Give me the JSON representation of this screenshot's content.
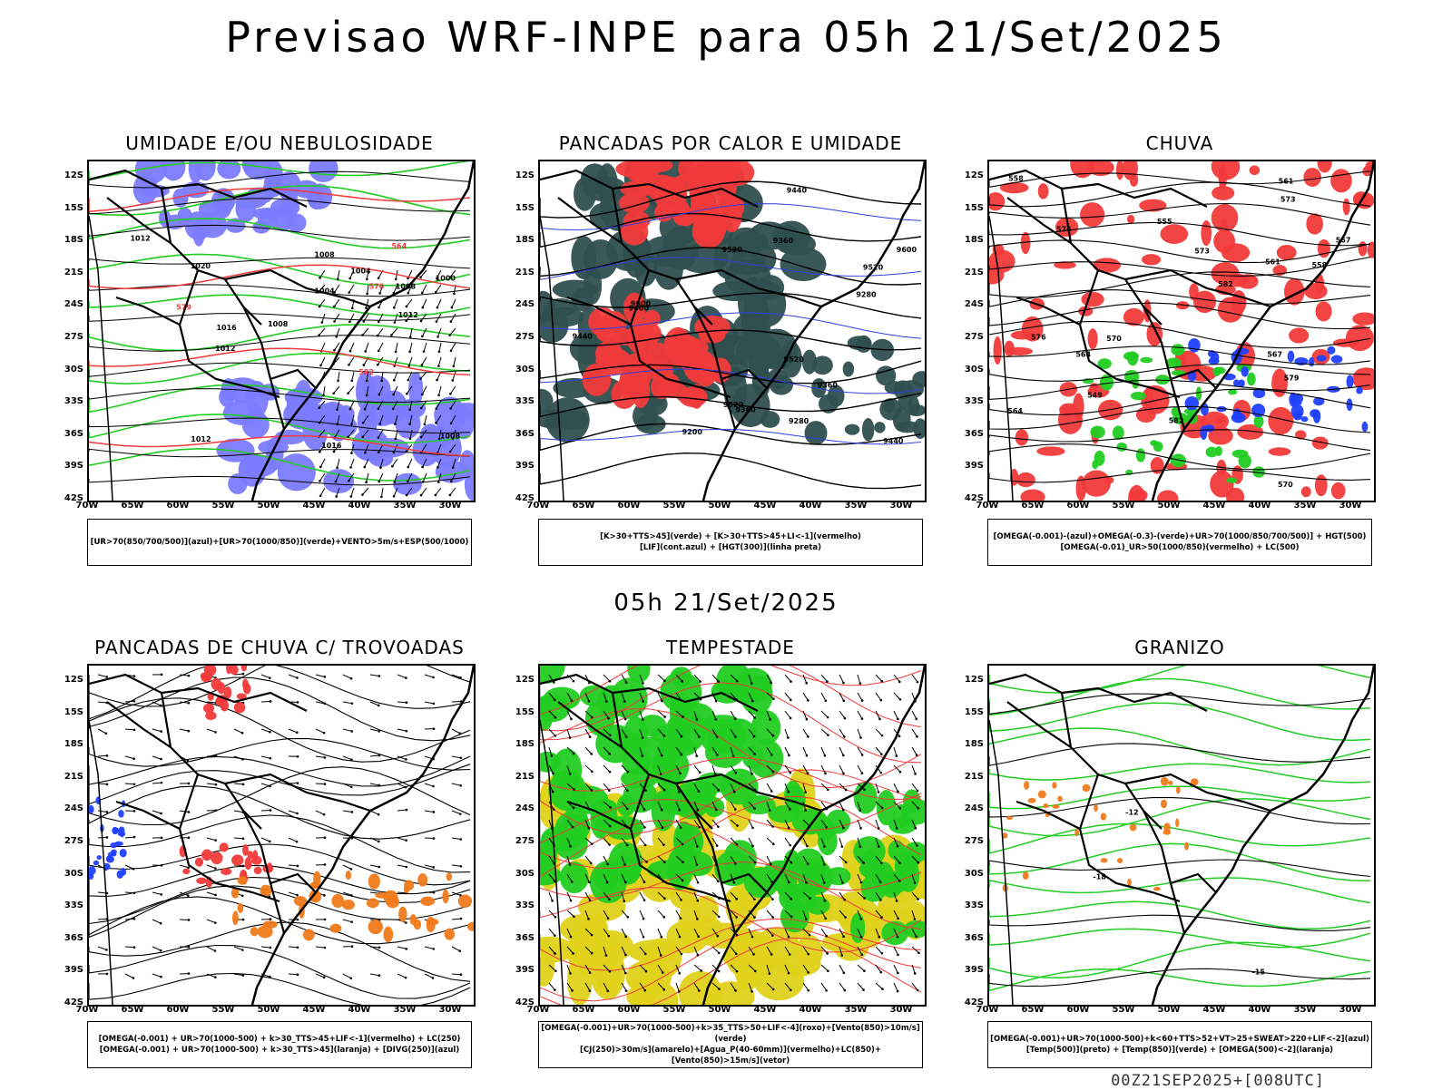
{
  "title": "Previsao WRF-INPE  para 05h 21/Set/2025",
  "mid_title": "05h 21/Set/2025",
  "footer": "00Z21SEP2025+[008UTC]",
  "axes": {
    "lat": [
      "12S",
      "15S",
      "18S",
      "21S",
      "24S",
      "27S",
      "30S",
      "33S",
      "36S",
      "39S",
      "42S"
    ],
    "lon": [
      "70W",
      "65W",
      "60W",
      "55W",
      "50W",
      "45W",
      "40W",
      "35W",
      "30W"
    ]
  },
  "panels": [
    {
      "title": "UMIDADE E/OU NEBULOSIDADE",
      "legend": [
        "[UR>70(850/700/500)](azul)+[UR>70(1000/850)](verde)+VENTO>5m/s+ESP(500/1000)"
      ],
      "contours": [
        "1016",
        "1012",
        "1012",
        "1012",
        "1008",
        "1008",
        "1004",
        "1000",
        "1008",
        "1012",
        "1004",
        "1008",
        "1016",
        "1020"
      ],
      "overlay": [
        "576",
        "582",
        "579",
        "564"
      ]
    },
    {
      "title": "PANCADAS POR CALOR E UMIDADE",
      "legend": [
        "[K>30+TTS>45](verde) + [K>30+TTS>45+LI<-1](vermelho)",
        "[LIF](cont.azul) + [HGT(300)](linha preta)"
      ],
      "contours": [
        "9600",
        "9600",
        "9520",
        "9520",
        "9440",
        "9360",
        "9280",
        "9200",
        "9520",
        "9440",
        "9360",
        "9280",
        "9600",
        "9520",
        "9440",
        "9360"
      ]
    },
    {
      "title": "CHUVA",
      "legend": [
        "[OMEGA(-0.001)-(azul)+OMEGA(-0.3)-(verde)+UR>70(1000/850/700/500)] + HGT(500)",
        "[OMEGA(-0.01)_UR>50(1000/850)(vermelho) + LC(500)"
      ],
      "contours": [
        "582",
        "582",
        "579",
        "576",
        "573",
        "570",
        "567",
        "564",
        "561",
        "558",
        "576",
        "573",
        "570",
        "567",
        "564",
        "561",
        "558",
        "555",
        "549"
      ]
    },
    {
      "title": "PANCADAS DE CHUVA C/ TROVOADAS",
      "legend": [
        "[OMEGA(-0.001) + UR>70(1000-500) + k>30_TTS>45+LIF<-1](vermelho) + LC(250)",
        "[OMEGA(-0.001) + UR>70(1000-500) + k>30_TTS>45](laranja) + [DIVG(250)](azul)"
      ]
    },
    {
      "title": "TEMPESTADE",
      "legend": [
        "[OMEGA(-0.001)+UR>70(1000-500)+k>35_TTS>50+LIF<-4](roxo)+[Vento(850)>10m/s](verde)",
        "[CJ(250)>30m/s](amarelo)+[Agua_P(40-60mm)](vermelho)+LC(850)+[Vento(850)>15m/s](vetor)"
      ]
    },
    {
      "title": "GRANIZO",
      "legend": [
        "[OMEGA(-0.001)+UR>70(1000-500)+k<60+TTS>52+VT>25+SWEAT>220+LIF<-2](azul)",
        "[Temp(500)](preto) + [Temp(850)](verde) + [OMEGA(500)<-2](laranja)"
      ],
      "contours": [
        "-12",
        "-15",
        "-18"
      ]
    }
  ],
  "colors": {
    "blue": "#7b7bff",
    "green": "#22cc22",
    "red": "#f23a3a",
    "darkteal": "#2f4f4f",
    "yellow": "#e0d21a",
    "orange": "#f07a1a"
  }
}
